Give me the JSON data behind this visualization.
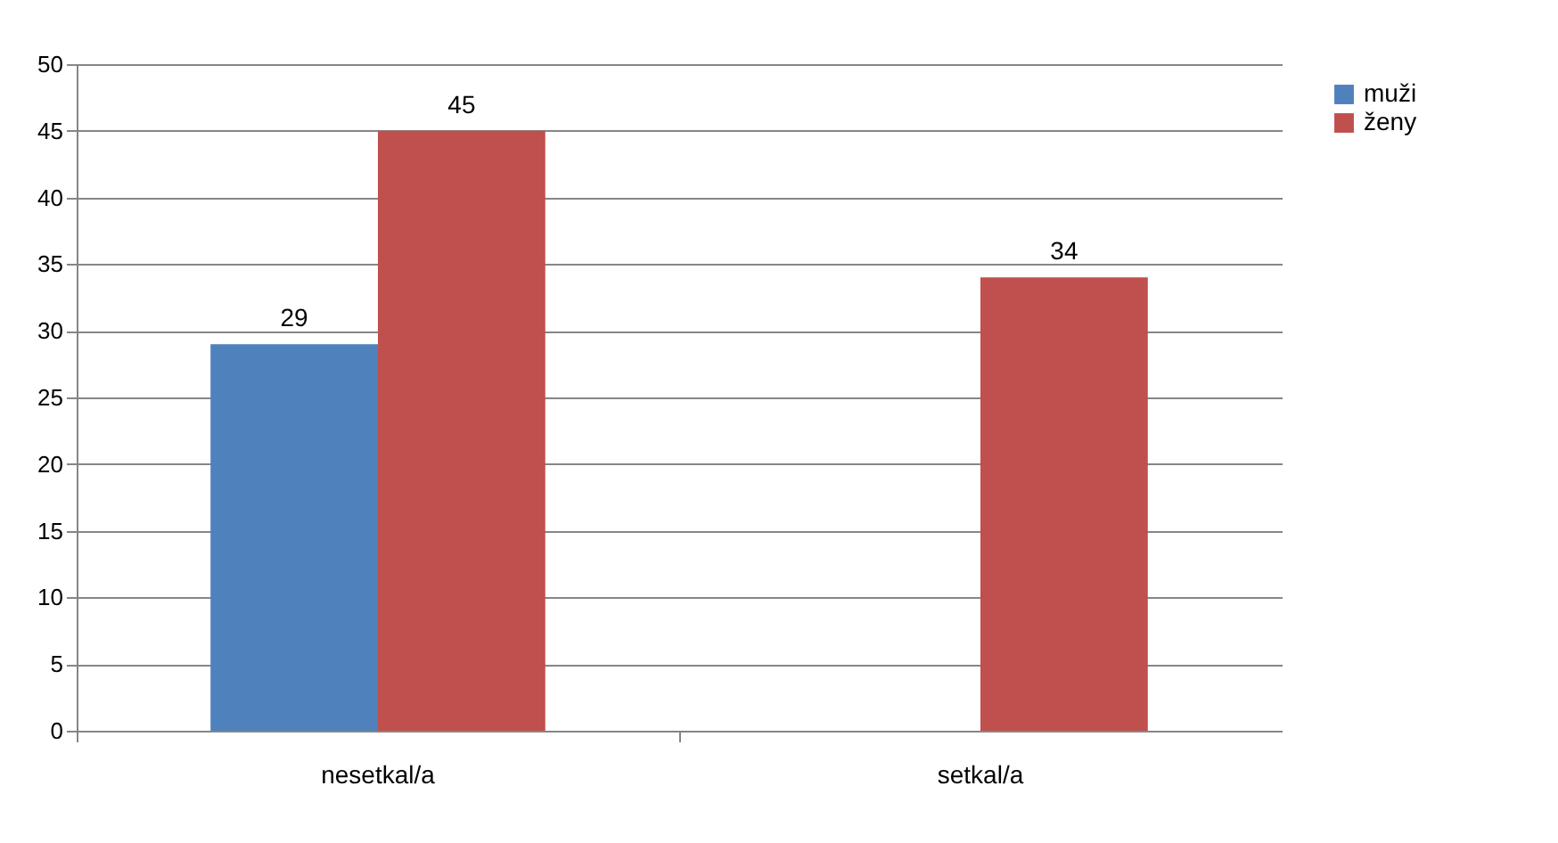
{
  "chart_data": {
    "type": "bar",
    "categories": [
      "nesetkal/a",
      "setkal/a"
    ],
    "series": [
      {
        "name": "muži",
        "color": "#4f81bd",
        "values": [
          29,
          null
        ]
      },
      {
        "name": "ženy",
        "color": "#c0504d",
        "values": [
          45,
          34
        ]
      }
    ],
    "ylim": [
      0,
      50
    ],
    "yticks": [
      0,
      5,
      10,
      15,
      20,
      25,
      30,
      35,
      40,
      45,
      50
    ],
    "grid": "y",
    "legend": "right",
    "data_labels": true
  }
}
